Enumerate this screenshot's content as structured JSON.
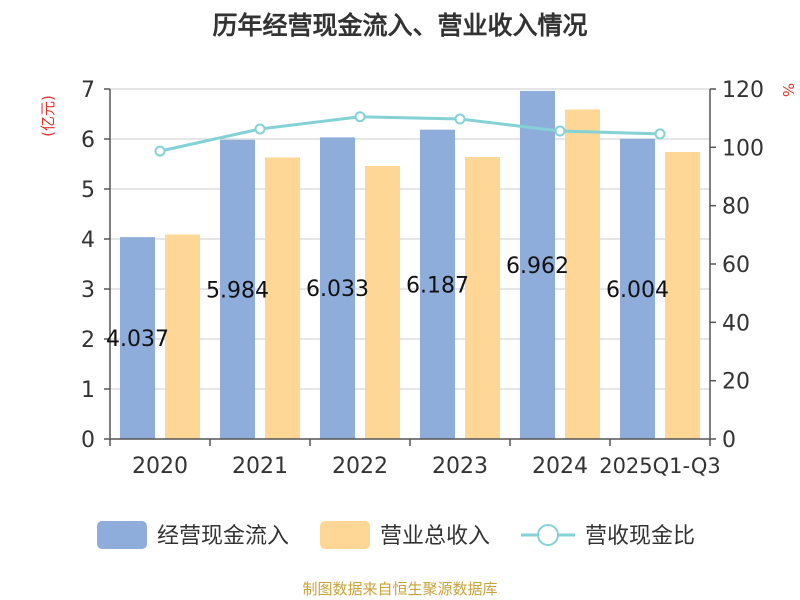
{
  "chart_data": {
    "type": "bar",
    "title": "历年经营现金流入、营业收入情况",
    "y_left_unit": "(亿元)",
    "y_right_unit": "%",
    "categories": [
      "2020",
      "2021",
      "2022",
      "2023",
      "2024",
      "2025Q1-Q3"
    ],
    "ylim_left": [
      0,
      7
    ],
    "yticks_left": [
      "0",
      "1",
      "2",
      "3",
      "4",
      "5",
      "6",
      "7"
    ],
    "ylim_right": [
      0,
      120
    ],
    "yticks_right": [
      "0",
      "20",
      "40",
      "60",
      "80",
      "100",
      "120"
    ],
    "grid": true,
    "legend_position": "bottom",
    "series": [
      {
        "name": "经营现金流入",
        "kind": "bar",
        "axis": "left",
        "color": "#8eaddb",
        "values": [
          4.037,
          5.984,
          6.033,
          6.187,
          6.962,
          6.004
        ],
        "labels": [
          "4.037",
          "5.984",
          "6.033",
          "6.187",
          "6.962",
          "6.004"
        ]
      },
      {
        "name": "营业总收入",
        "kind": "bar",
        "axis": "left",
        "color": "#fed796",
        "values": [
          4.09,
          5.63,
          5.46,
          5.64,
          6.59,
          5.74
        ]
      },
      {
        "name": "营收现金比",
        "kind": "line",
        "axis": "right",
        "color": "#84d2d5",
        "values": [
          98.7,
          106.3,
          110.5,
          109.7,
          105.6,
          104.6
        ]
      }
    ]
  },
  "source": "制图数据来自恒生聚源数据库",
  "colors": {
    "title": "#333333",
    "axis_text": "#333333",
    "unit_text": "#e0332f",
    "source_text": "#c8a33a",
    "grid": "#cccccc",
    "axis": "#555555"
  }
}
